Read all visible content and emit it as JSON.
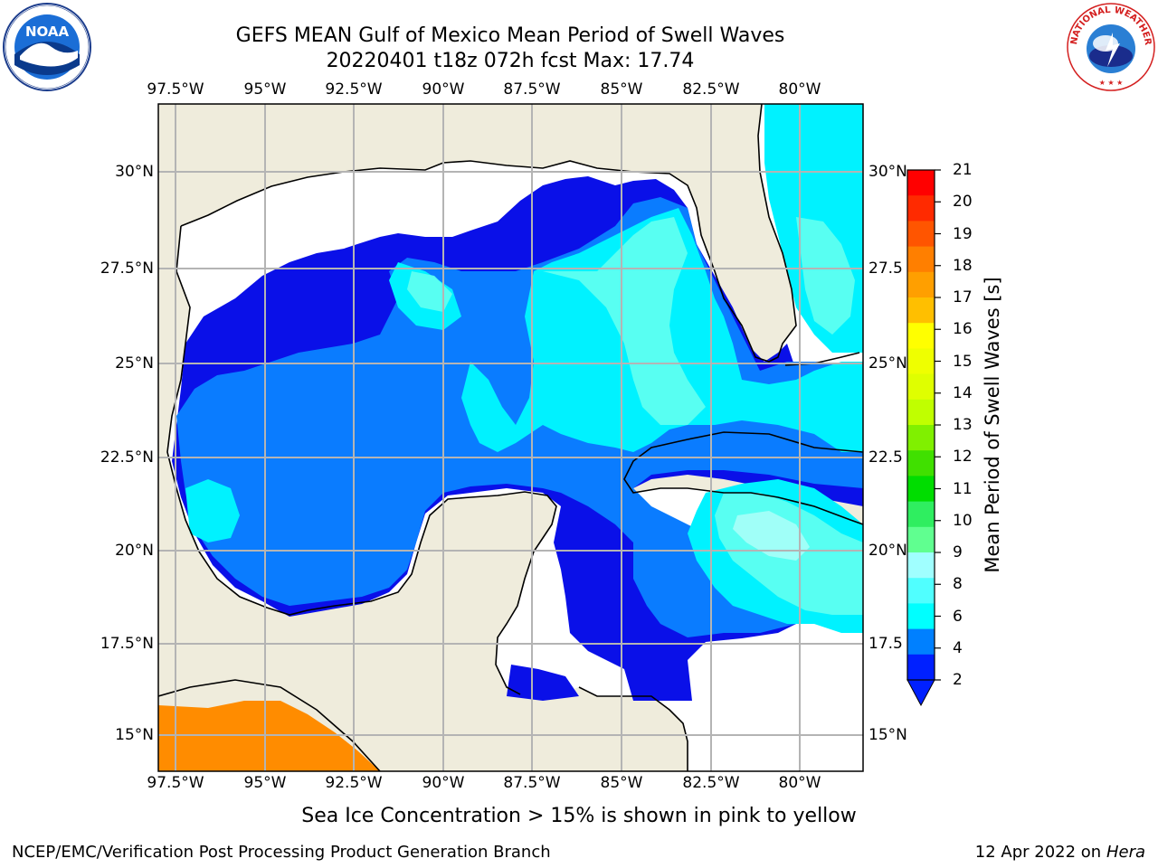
{
  "title_line1": "GEFS MEAN Gulf of Mexico Mean Period of Swell Waves",
  "title_line2": "20220401 t18z 072h fcst   Max: 17.74",
  "lon_ticks": [
    "97.5°W",
    "95°W",
    "92.5°W",
    "90°W",
    "87.5°W",
    "85°W",
    "82.5°W",
    "80°W"
  ],
  "lat_ticks_left": [
    "30°N",
    "27.5°N",
    "25°N",
    "22.5°N",
    "20°N",
    "17.5°N",
    "15°N"
  ],
  "lat_ticks_right": [
    "30°N",
    "27.5",
    "25°N",
    "22.5",
    "20°N",
    "17.5",
    "15°N"
  ],
  "colorbar": {
    "label": "Mean Period of Swell Waves [s]",
    "ticks": [
      "21",
      "20",
      "19",
      "18",
      "17",
      "16",
      "15",
      "14",
      "13",
      "12",
      "11",
      "10",
      "9",
      "8",
      "6",
      "4",
      "2"
    ],
    "colors": [
      "#ff0000",
      "#ff2a00",
      "#ff5500",
      "#ff7f00",
      "#ff9f00",
      "#ffbf00",
      "#ffff00",
      "#efff00",
      "#dfff00",
      "#c0ff00",
      "#80f000",
      "#40e000",
      "#00dd00",
      "#2fee60",
      "#60ff90",
      "#a0ffff",
      "#50ffff",
      "#00ffff",
      "#0080ff",
      "#0020ff"
    ]
  },
  "colors": {
    "land": "#efecdc",
    "sea_ice_orange": "#ff8c00",
    "band_2_4": "#0a10e8",
    "band_4_6": "#0a7cff",
    "band_6_8": "#00f2ff",
    "band_8_9": "#58fff2",
    "band_9_10": "#a0fff8"
  },
  "sea_ice_note": "Sea Ice Concentration > 15% is shown in pink to yellow",
  "footer_left": "NCEP/EMC/Verification Post Processing Product Generation Branch",
  "footer_right_date": "12 Apr 2022 on ",
  "footer_right_host": "Hera",
  "logos": {
    "left": "NOAA",
    "right_ring": "NATIONAL WEATHER SERVICE"
  }
}
